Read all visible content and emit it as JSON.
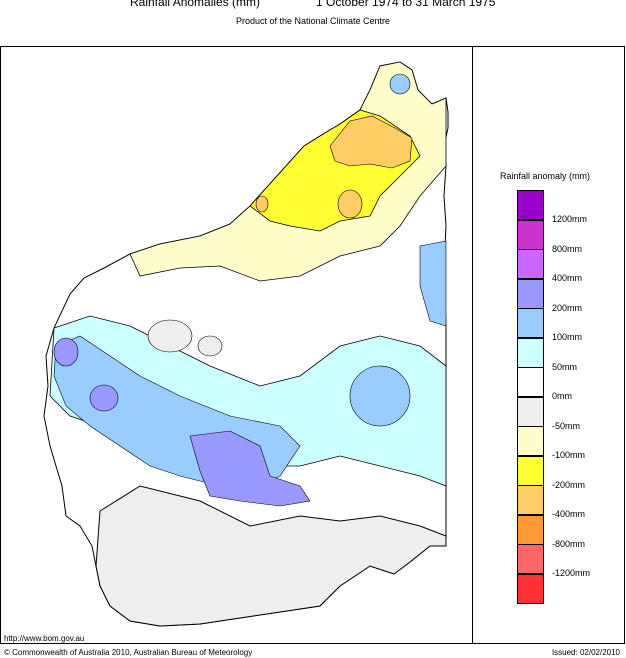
{
  "header": {
    "title": "Rainfall Anomalies (mm)",
    "period": "1 October 1974 to 31 March 1975",
    "subtitle": "Product of the National Climate Centre"
  },
  "legend": {
    "title": "Rainfall anomaly (mm)",
    "items": [
      {
        "label": "1200mm",
        "color": "#9900cc"
      },
      {
        "label": "800mm",
        "color": "#cc33cc"
      },
      {
        "label": "400mm",
        "color": "#cc66ff"
      },
      {
        "label": "200mm",
        "color": "#9999ff"
      },
      {
        "label": "100mm",
        "color": "#99ccff"
      },
      {
        "label": "50mm",
        "color": "#ccffff"
      },
      {
        "label": "0mm",
        "color": "#ffffff"
      },
      {
        "label": "-50mm",
        "color": "#eeeeee"
      },
      {
        "label": "-100mm",
        "color": "#ffffcc"
      },
      {
        "label": "-200mm",
        "color": "#ffff33"
      },
      {
        "label": "-400mm",
        "color": "#ffcc66"
      },
      {
        "label": "-800mm",
        "color": "#ff9933"
      },
      {
        "label": "-1200mm",
        "color": "#ff6666"
      },
      {
        "label": "",
        "color": "#ff3333"
      }
    ]
  },
  "footer": {
    "url": "http://www.bom.gov.au",
    "copyright": "© Commonwealth of Australia 2010, Australian Bureau of Meteorology",
    "issued": "Issued: 02/02/2010"
  }
}
